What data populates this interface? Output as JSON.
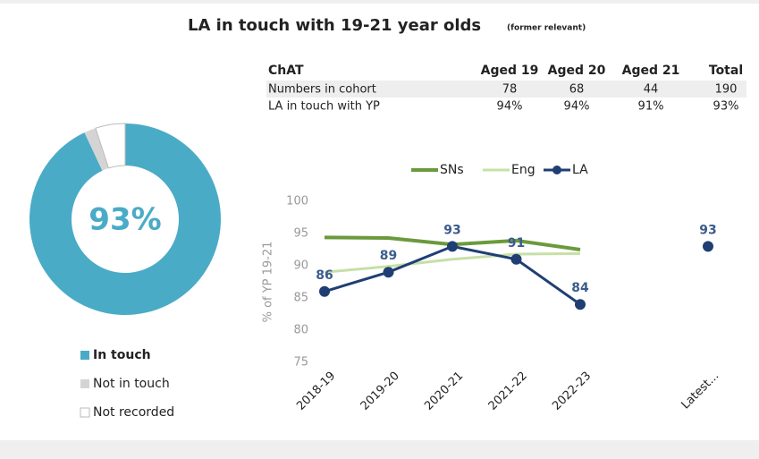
{
  "title": "LA in touch with 19-21 year olds",
  "subtitle": "(former relevant)",
  "table": {
    "columns": [
      "ChAT",
      "Aged 19",
      "Aged 20",
      "Aged 21",
      "Total"
    ],
    "rows": [
      [
        "Numbers in cohort",
        "78",
        "68",
        "44",
        "190"
      ],
      [
        "LA in touch with YP",
        "94%",
        "94%",
        "91%",
        "93%"
      ]
    ]
  },
  "chart_data": [
    {
      "type": "pie",
      "center_label": "93%",
      "categories": [
        "In touch",
        "Not in touch",
        "Not recorded"
      ],
      "values": [
        93,
        2,
        5
      ],
      "colors": [
        "#4aabc7",
        "#d4d4d4",
        "#ffffff"
      ]
    },
    {
      "type": "line",
      "ylabel": "% of YP 19-21",
      "categories": [
        "2018-19",
        "2019-20",
        "2020-21",
        "2021-22",
        "2022-23",
        null,
        "Latest..."
      ],
      "ylim": [
        75,
        100
      ],
      "yticks": [
        75,
        80,
        85,
        90,
        95,
        100
      ],
      "series": [
        {
          "name": "SNs",
          "color": "#6b9a3c",
          "values": [
            94.4,
            94.3,
            93.3,
            93.9,
            92.5,
            null,
            null
          ]
        },
        {
          "name": "Eng",
          "color": "#c6e0a7",
          "values": [
            89,
            89.9,
            91,
            91.8,
            91.9,
            null,
            null
          ]
        },
        {
          "name": "LA",
          "color": "#1f3f74",
          "values": [
            86,
            89,
            93,
            91,
            84,
            null,
            93
          ]
        }
      ]
    }
  ]
}
